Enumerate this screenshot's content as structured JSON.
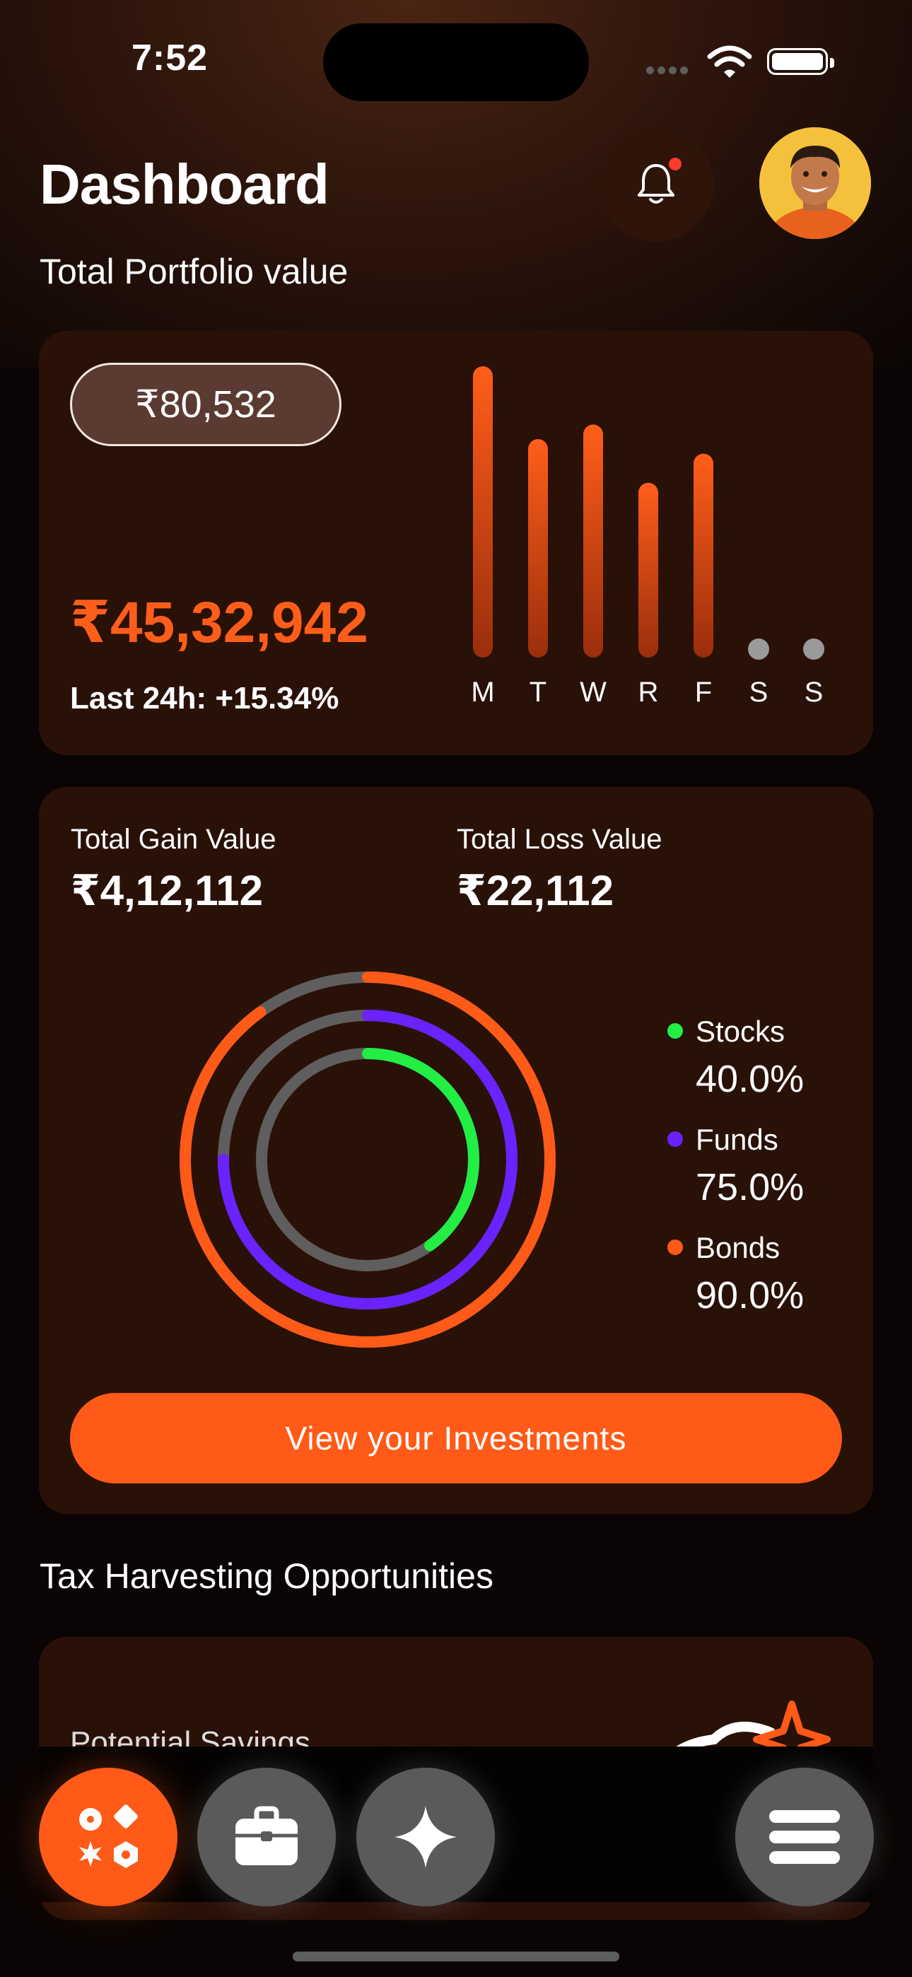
{
  "status": {
    "time": "7:52"
  },
  "header": {
    "title": "Dashboard",
    "subtitle": "Total Portfolio value"
  },
  "portfolio": {
    "pill_value": "₹80,532",
    "total_value": "₹45,32,942",
    "change_text": "Last 24h: +15.34%"
  },
  "chart_data": {
    "type": "bar",
    "categories": [
      "M",
      "T",
      "W",
      "R",
      "F",
      "S",
      "S"
    ],
    "values": [
      100,
      75,
      80,
      60,
      70,
      0,
      0
    ],
    "ylim": [
      0,
      100
    ]
  },
  "summary": {
    "gain_label": "Total Gain Value",
    "gain_value": "₹4,12,112",
    "loss_label": "Total Loss Value",
    "loss_value": "₹22,112"
  },
  "allocation": [
    {
      "name": "Stocks",
      "percent": "40.0%",
      "fraction": 0.4,
      "color": "#22ee44"
    },
    {
      "name": "Funds",
      "percent": "75.0%",
      "fraction": 0.75,
      "color": "#6a22ff"
    },
    {
      "name": "Bonds",
      "percent": "90.0%",
      "fraction": 0.9,
      "color": "#ff5a18"
    }
  ],
  "cta": {
    "label": "View your Investments"
  },
  "tax": {
    "section_title": "Tax Harvesting Opportunities",
    "potential_label": "Potential Savings"
  },
  "colors": {
    "accent": "#ff5a18",
    "card": "#2a1108",
    "track": "#5e5e5e"
  }
}
